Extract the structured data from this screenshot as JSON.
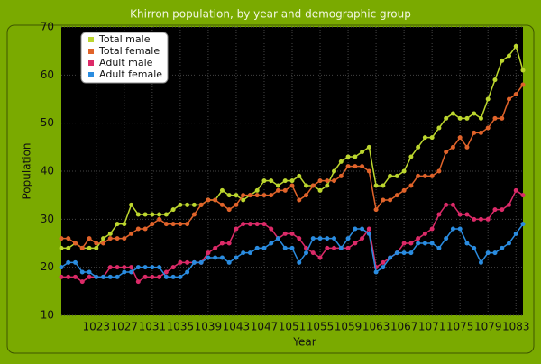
{
  "chart_data": {
    "type": "line",
    "title": "Khirron population, by year and demographic group",
    "xlabel": "Year",
    "ylabel": "Population",
    "x": [
      1018,
      1019,
      1020,
      1021,
      1022,
      1023,
      1024,
      1025,
      1026,
      1027,
      1028,
      1029,
      1030,
      1031,
      1032,
      1033,
      1034,
      1035,
      1036,
      1037,
      1038,
      1039,
      1040,
      1041,
      1042,
      1043,
      1044,
      1045,
      1046,
      1047,
      1048,
      1049,
      1050,
      1051,
      1052,
      1053,
      1054,
      1055,
      1056,
      1057,
      1058,
      1059,
      1060,
      1061,
      1062,
      1063,
      1064,
      1065,
      1066,
      1067,
      1068,
      1069,
      1070,
      1071,
      1072,
      1073,
      1074,
      1075,
      1076,
      1077,
      1078,
      1079,
      1080,
      1081,
      1082,
      1083,
      1084
    ],
    "series": [
      {
        "name": "Total male",
        "color": "#bcd62e",
        "values": [
          24,
          24,
          25,
          24,
          24,
          24,
          26,
          27,
          29,
          29,
          33,
          31,
          31,
          31,
          31,
          31,
          32,
          33,
          33,
          33,
          33,
          34,
          34,
          36,
          35,
          35,
          34,
          35,
          36,
          38,
          38,
          37,
          38,
          38,
          39,
          37,
          37,
          36,
          37,
          40,
          42,
          43,
          43,
          44,
          45,
          37,
          37,
          39,
          39,
          40,
          43,
          45,
          47,
          47,
          49,
          51,
          52,
          51,
          51,
          52,
          51,
          55,
          59,
          63,
          64,
          66,
          61
        ]
      },
      {
        "name": "Total female",
        "color": "#e0632a",
        "values": [
          26,
          26,
          25,
          24,
          26,
          25,
          25,
          26,
          26,
          26,
          27,
          28,
          28,
          29,
          30,
          29,
          29,
          29,
          29,
          31,
          33,
          34,
          34,
          33,
          32,
          33,
          35,
          35,
          35,
          35,
          35,
          36,
          36,
          37,
          34,
          35,
          37,
          38,
          38,
          38,
          39,
          41,
          41,
          41,
          40,
          32,
          34,
          34,
          35,
          36,
          37,
          39,
          39,
          39,
          40,
          44,
          45,
          47,
          45,
          48,
          48,
          49,
          51,
          51,
          55,
          56,
          58
        ]
      },
      {
        "name": "Adult male",
        "color": "#dc2a68",
        "values": [
          18,
          18,
          18,
          17,
          18,
          18,
          18,
          20,
          20,
          20,
          20,
          17,
          18,
          18,
          18,
          19,
          20,
          21,
          21,
          21,
          21,
          23,
          24,
          25,
          25,
          28,
          29,
          29,
          29,
          29,
          28,
          26,
          27,
          27,
          26,
          24,
          23,
          22,
          24,
          24,
          24,
          24,
          25,
          26,
          28,
          20,
          21,
          22,
          23,
          25,
          25,
          26,
          27,
          28,
          31,
          33,
          33,
          31,
          31,
          30,
          30,
          30,
          32,
          32,
          33,
          36,
          35
        ]
      },
      {
        "name": "Adult female",
        "color": "#2a8ce0",
        "values": [
          20,
          21,
          21,
          19,
          19,
          18,
          18,
          18,
          18,
          19,
          19,
          20,
          20,
          20,
          20,
          18,
          18,
          18,
          19,
          21,
          21,
          22,
          22,
          22,
          21,
          22,
          23,
          23,
          24,
          24,
          25,
          26,
          24,
          24,
          21,
          23,
          26,
          26,
          26,
          26,
          24,
          26,
          28,
          28,
          27,
          19,
          20,
          22,
          23,
          23,
          23,
          25,
          25,
          25,
          24,
          26,
          28,
          28,
          25,
          24,
          21,
          23,
          23,
          24,
          25,
          27,
          29
        ]
      }
    ],
    "xlim": [
      1018,
      1084
    ],
    "xticks": [
      1023,
      1027,
      1031,
      1035,
      1039,
      1043,
      1047,
      1051,
      1055,
      1059,
      1063,
      1067,
      1071,
      1075,
      1079,
      1083
    ],
    "ylim": [
      10,
      70
    ],
    "yticks": [
      10,
      20,
      30,
      40,
      50,
      60,
      70
    ],
    "grid": true,
    "legend": "upper left"
  }
}
